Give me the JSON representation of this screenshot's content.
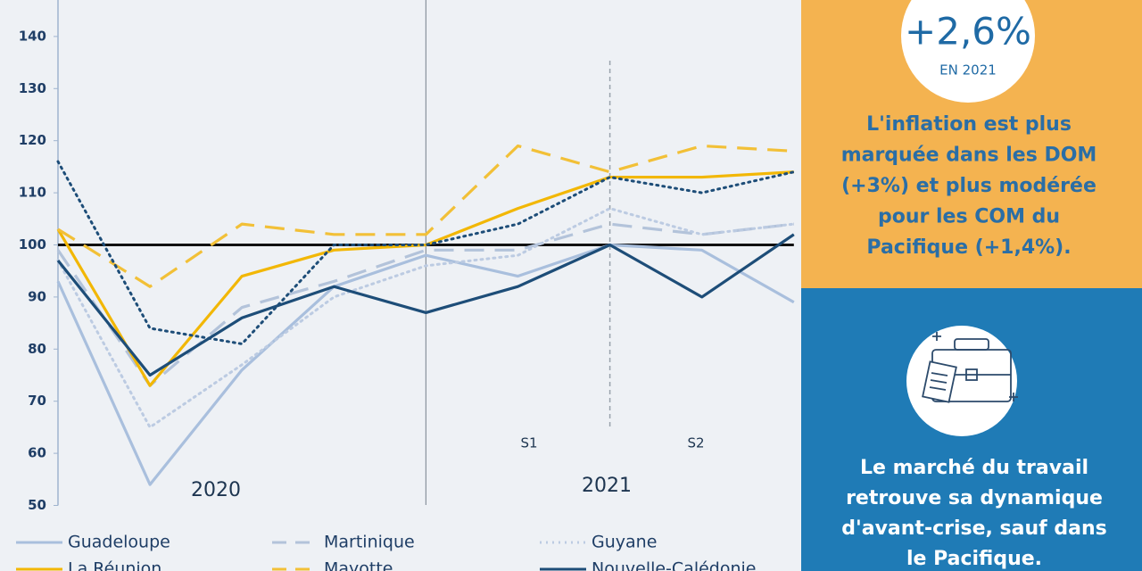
{
  "chart_data": {
    "type": "line",
    "categories": [
      null,
      null,
      null,
      null,
      null,
      null,
      null,
      null,
      null
    ],
    "ylim": [
      50,
      147
    ],
    "yticks": [
      50,
      60,
      70,
      80,
      90,
      100,
      110,
      120,
      130,
      140
    ],
    "reference_line": 100,
    "period_labels": [
      "2020",
      "2021"
    ],
    "half_labels": [
      "S1",
      "S2"
    ],
    "series": [
      {
        "name": "Guadeloupe",
        "color": "#a9bfdd",
        "dash": "solid",
        "values": [
          93,
          54,
          76,
          92,
          98,
          94,
          100,
          99,
          89
        ]
      },
      {
        "name": "Martinique",
        "color": "#b3c3da",
        "dash": "dashed",
        "values": [
          99,
          73,
          88,
          93,
          99,
          99,
          104,
          102,
          104
        ]
      },
      {
        "name": "Guyane",
        "color": "#bccbe2",
        "dash": "dotted",
        "values": [
          97,
          65,
          77,
          90,
          96,
          98,
          107,
          102,
          104
        ]
      },
      {
        "name": "La Réunion",
        "color": "#f2b705",
        "dash": "solid",
        "values": [
          103,
          73,
          94,
          99,
          100,
          107,
          113,
          113,
          114
        ]
      },
      {
        "name": "Mayotte",
        "color": "#f2c037",
        "dash": "dashed",
        "values": [
          103,
          92,
          104,
          102,
          102,
          119,
          114,
          119,
          118
        ]
      },
      {
        "name": "Nouvelle-Calédonie",
        "color": "#1d4d78",
        "dash": "solid",
        "values": [
          97,
          75,
          86,
          92,
          87,
          92,
          100,
          90,
          102
        ]
      },
      {
        "color": "#1d4d78",
        "dash": "dotted",
        "values": [
          116,
          84,
          81,
          100,
          100,
          104,
          113,
          110,
          114
        ]
      }
    ]
  },
  "panels": {
    "inflation": {
      "value": "+2,6%",
      "sub": "EN 2021",
      "lines": [
        "L'inflation est plus",
        "marquée dans les DOM",
        "(+3%) et plus modérée",
        "pour les COM du",
        "Pacifique (+1,4%)."
      ]
    },
    "labor": {
      "lines": [
        "Le marché du travail",
        "retrouve sa dynamique",
        "d'avant-crise, sauf dans",
        "le Pacifique."
      ]
    }
  }
}
